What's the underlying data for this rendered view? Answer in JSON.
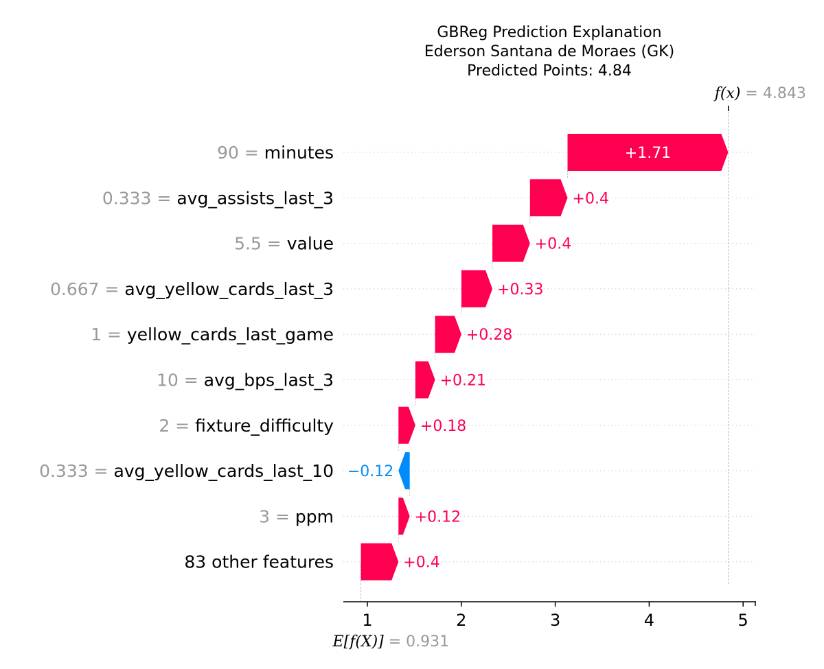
{
  "chart_data": {
    "type": "waterfall",
    "title_lines": [
      "GBReg Prediction Explanation",
      "Ederson Santana de Moraes (GK)",
      "Predicted Points: 4.84"
    ],
    "base_value": 0.931,
    "base_label": "E[f(X)]",
    "base_value_text": "= 0.931",
    "output_value": 4.843,
    "output_label": "f(x)",
    "output_value_text": "= 4.843",
    "xlim": [
      0.75,
      5.1
    ],
    "xticks": [
      1,
      2,
      3,
      4,
      5
    ],
    "grid": "dotted horizontal row lines",
    "colors": {
      "positive": "#ff0051",
      "negative": "#008bfb",
      "feature_value": "#999999",
      "feature_name": "#000000"
    },
    "features": [
      {
        "value": "90",
        "name": "minutes",
        "contribution": 1.71,
        "label": "+1.71"
      },
      {
        "value": "0.333",
        "name": "avg_assists_last_3",
        "contribution": 0.4,
        "label": "+0.4"
      },
      {
        "value": "5.5",
        "name": "value",
        "contribution": 0.4,
        "label": "+0.4"
      },
      {
        "value": "0.667",
        "name": "avg_yellow_cards_last_3",
        "contribution": 0.33,
        "label": "+0.33"
      },
      {
        "value": "1",
        "name": "yellow_cards_last_game",
        "contribution": 0.28,
        "label": "+0.28"
      },
      {
        "value": "10",
        "name": "avg_bps_last_3",
        "contribution": 0.21,
        "label": "+0.21"
      },
      {
        "value": "2",
        "name": "fixture_difficulty",
        "contribution": 0.18,
        "label": "+0.18"
      },
      {
        "value": "0.333",
        "name": "avg_yellow_cards_last_10",
        "contribution": -0.12,
        "label": "−0.12"
      },
      {
        "value": "3",
        "name": "ppm",
        "contribution": 0.12,
        "label": "+0.12"
      },
      {
        "value": "",
        "name": "83 other features",
        "contribution": 0.4,
        "label": "+0.4"
      }
    ]
  }
}
